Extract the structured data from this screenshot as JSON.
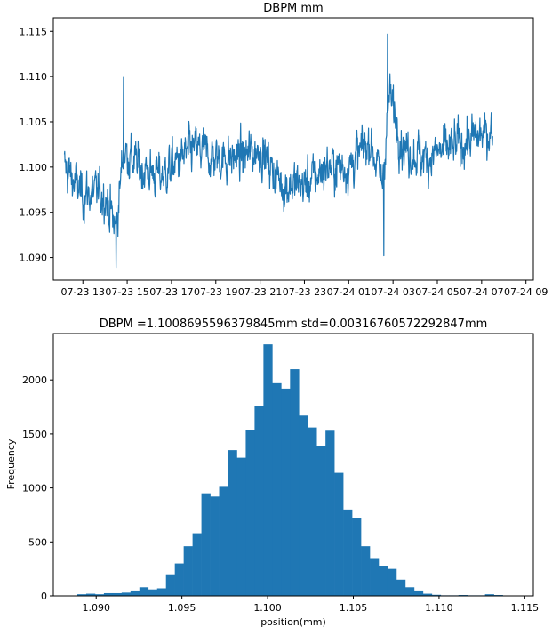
{
  "colors": {
    "series": "#1f77b4",
    "axes": "#000000",
    "background": "#ffffff"
  },
  "chart_data": [
    {
      "type": "line",
      "title": "DBPM  mm",
      "xlabel": "",
      "ylabel": "",
      "x_ticks": [
        "07-23 13",
        "07-23 15",
        "07-23 17",
        "07-23 19",
        "07-23 21",
        "07-23 23",
        "07-24 01",
        "07-24 03",
        "07-24 05",
        "07-24 07",
        "07-24 09"
      ],
      "x_range": [
        "07-23 11:40",
        "07-24 09:20"
      ],
      "data_range": [
        "07-23 12:10",
        "07-24 07:30"
      ],
      "y_ticks": [
        1.09,
        1.095,
        1.1,
        1.105,
        1.11,
        1.115
      ],
      "y_tick_labels": [
        "1.090",
        "1.095",
        "1.100",
        "1.105",
        "1.110",
        "1.115"
      ],
      "ylim": [
        1.0875,
        1.1165
      ],
      "grid": false,
      "series": [
        {
          "values_approx": [
            [
              "07-23 12:10",
              1.1
            ],
            [
              "07-23 13:00",
              1.097
            ],
            [
              "07-23 14:00",
              1.097
            ],
            [
              "07-23 14:30",
              1.093
            ],
            [
              "07-23 14:50",
              1.102
            ],
            [
              "07-23 15:30",
              1.1
            ],
            [
              "07-23 16:30",
              1.099
            ],
            [
              "07-23 17:00",
              1.1
            ],
            [
              "07-23 18:00",
              1.102
            ],
            [
              "07-23 19:00",
              1.101
            ],
            [
              "07-23 20:00",
              1.101
            ],
            [
              "07-23 21:00",
              1.102
            ],
            [
              "07-23 22:00",
              1.098
            ],
            [
              "07-23 23:00",
              1.098
            ],
            [
              "07-24 00:00",
              1.1
            ],
            [
              "07-24 01:00",
              1.1
            ],
            [
              "07-24 02:00",
              1.103
            ],
            [
              "07-24 02:30",
              1.098
            ],
            [
              "07-24 02:50",
              1.108
            ],
            [
              "07-24 03:30",
              1.102
            ],
            [
              "07-24 04:30",
              1.101
            ],
            [
              "07-24 05:30",
              1.102
            ],
            [
              "07-24 06:30",
              1.103
            ],
            [
              "07-24 07:30",
              1.104
            ]
          ],
          "notable_points": [
            {
              "x": "07-23 14:30",
              "y": 1.0889
            },
            {
              "x": "07-23 14:50",
              "y": 1.1099
            },
            {
              "x": "07-24 02:45",
              "y": 1.1147
            },
            {
              "x": "07-24 02:35",
              "y": 1.0902
            }
          ]
        }
      ]
    },
    {
      "type": "bar",
      "title": "DBPM =1.1008695596379845mm std=0.0031676057229284 7mm",
      "title_display": "DBPM =1.1008695596379845mm std=0.00316760572292847mm",
      "xlabel": "position(mm)",
      "ylabel": "Frequency",
      "x_ticks": [
        1.09,
        1.095,
        1.1,
        1.105,
        1.11,
        1.115
      ],
      "x_tick_labels": [
        "1.090",
        "1.095",
        "1.100",
        "1.105",
        "1.110",
        "1.115"
      ],
      "xlim": [
        1.0875,
        1.1155
      ],
      "y_ticks": [
        0,
        500,
        1000,
        1500,
        2000
      ],
      "y_tick_labels": [
        "0",
        "500",
        "1000",
        "1500",
        "2000"
      ],
      "ylim": [
        0,
        2430
      ],
      "grid": false,
      "bin_start": 1.0889,
      "bin_width": 0.000517,
      "values": [
        15,
        20,
        15,
        25,
        25,
        30,
        50,
        80,
        60,
        70,
        200,
        300,
        460,
        580,
        950,
        920,
        1010,
        1350,
        1280,
        1540,
        1760,
        2330,
        1970,
        1920,
        2100,
        1670,
        1560,
        1390,
        1530,
        1140,
        800,
        720,
        460,
        350,
        280,
        250,
        150,
        80,
        50,
        20,
        10,
        5,
        5,
        8,
        5,
        5,
        15,
        8
      ]
    }
  ]
}
